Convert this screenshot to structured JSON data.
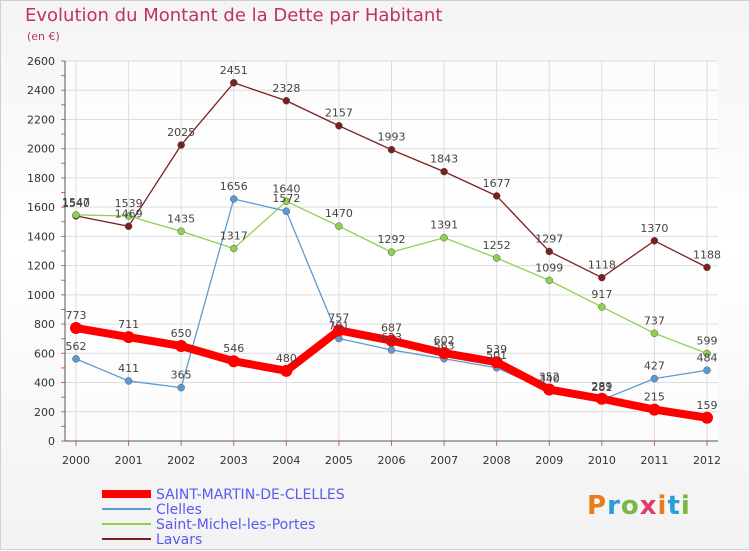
{
  "header": {
    "title": "Evolution du Montant de la Dette par Habitant",
    "subtitle": "(en €)"
  },
  "logo": {
    "text": "Proxiti",
    "colors": [
      "#e87d1e",
      "#2a9fd6",
      "#7ab648",
      "#e23a6b"
    ]
  },
  "chart_data": {
    "type": "line",
    "title": "Evolution du Montant de la Dette par Habitant",
    "ylabel": "(en €)",
    "x": [
      "2000",
      "2001",
      "2002",
      "2003",
      "2004",
      "2005",
      "2006",
      "2007",
      "2008",
      "2009",
      "2010",
      "2011",
      "2012"
    ],
    "yticks": [
      "0",
      "200",
      "400",
      "600",
      "800",
      "1000",
      "1200",
      "1400",
      "1600",
      "1800",
      "2000",
      "2200",
      "2400",
      "2600"
    ],
    "ylim": [
      0,
      2600
    ],
    "grid": true,
    "legend_position": "bottom-left",
    "series": [
      {
        "name": "SAINT-MARTIN-DE-CLELLES",
        "color": "#ff0000",
        "bold": true,
        "values": [
          773,
          711,
          650,
          546,
          480,
          757,
          687,
          602,
          539,
          352,
          289,
          215,
          159
        ]
      },
      {
        "name": "Clelles",
        "color": "#5b9bd5",
        "bold": false,
        "values": [
          562,
          411,
          365,
          1656,
          1572,
          701,
          623,
          563,
          501,
          340,
          281,
          427,
          484
        ]
      },
      {
        "name": "Saint-Michel-les-Portes",
        "color": "#90d050",
        "bold": false,
        "values": [
          1547,
          1539,
          1435,
          1317,
          1640,
          1470,
          1292,
          1391,
          1252,
          1099,
          917,
          737,
          599
        ]
      },
      {
        "name": "Lavars",
        "color": "#7b2020",
        "bold": false,
        "values": [
          1540,
          1469,
          2025,
          2451,
          2328,
          2157,
          1993,
          1843,
          1677,
          1297,
          1118,
          1370,
          1188
        ]
      }
    ]
  }
}
